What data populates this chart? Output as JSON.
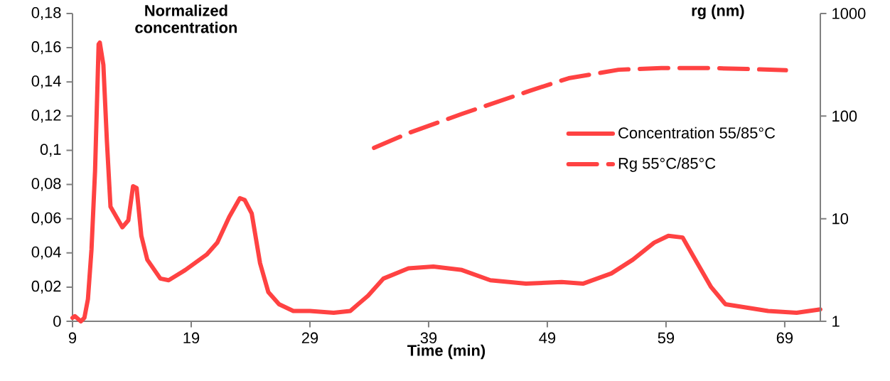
{
  "chart_data": {
    "type": "line",
    "xlabel": "Time (min)",
    "ylabel": "Normalized concentration",
    "y2label": "rg (nm)",
    "xlim": [
      9,
      72
    ],
    "xticks": [
      9,
      19,
      29,
      39,
      49,
      59,
      69
    ],
    "ylim": [
      0,
      0.18
    ],
    "yticks": [
      0,
      {
        "value": 0.02,
        "label": "0,02"
      },
      {
        "value": 0.04,
        "label": "0,04"
      },
      {
        "value": 0.06,
        "label": "0,06"
      },
      {
        "value": 0.08,
        "label": "0,08"
      },
      {
        "value": 0.1,
        "label": "0,1"
      },
      {
        "value": 0.12,
        "label": "0,12"
      },
      {
        "value": 0.14,
        "label": "0,14"
      },
      {
        "value": 0.16,
        "label": "0,16"
      },
      {
        "value": 0.18,
        "label": "0,18"
      }
    ],
    "y2lim": [
      1,
      1000
    ],
    "y2ticks": [
      1,
      10,
      100,
      1000
    ],
    "log": "y2",
    "grid": false,
    "legend": "right",
    "marker": "none",
    "series": [
      {
        "name": "Concentration 55/85°C",
        "color": "#ff4242",
        "line_style": "solid",
        "axis": "y",
        "x": [
          9,
          9.2,
          9.7,
          10,
          10.3,
          10.6,
          10.9,
          11.2,
          11.3,
          11.6,
          11.9,
          12.2,
          12.7,
          13.2,
          13.7,
          14.1,
          14.4,
          14.8,
          15.3,
          16.4,
          17.1,
          18.5,
          20.3,
          21.2,
          22.2,
          23.1,
          23.5,
          24.1,
          24.8,
          25.5,
          26.4,
          27.6,
          29,
          31,
          32.4,
          33.9,
          35.2,
          37.3,
          39.4,
          41.8,
          44.2,
          47.2,
          50.2,
          52,
          54.4,
          56.2,
          58,
          59.2,
          60.4,
          61.3,
          62.8,
          64,
          65.8,
          67.6,
          70,
          72
        ],
        "values": [
          0.002,
          0.003,
          0,
          0.002,
          0.013,
          0.042,
          0.088,
          0.162,
          0.163,
          0.15,
          0.105,
          0.067,
          0.061,
          0.055,
          0.059,
          0.079,
          0.078,
          0.05,
          0.036,
          0.025,
          0.024,
          0.03,
          0.039,
          0.046,
          0.061,
          0.072,
          0.071,
          0.063,
          0.034,
          0.017,
          0.01,
          0.006,
          0.006,
          0.005,
          0.006,
          0.015,
          0.025,
          0.031,
          0.032,
          0.03,
          0.024,
          0.022,
          0.023,
          0.022,
          0.028,
          0.036,
          0.046,
          0.05,
          0.049,
          0.038,
          0.02,
          0.01,
          0.008,
          0.006,
          0.005,
          0.007
        ]
      },
      {
        "name": "Rg 55°C/85°C",
        "color": "#ff4242",
        "line_style": "dashed",
        "axis": "y2",
        "x": [
          34.4,
          37.4,
          41.8,
          47.5,
          50.8,
          55,
          58.6,
          62.8,
          65.8,
          69.1
        ],
        "values": [
          49,
          69,
          105,
          176,
          234,
          283,
          294,
          294,
          288,
          280
        ]
      }
    ]
  }
}
